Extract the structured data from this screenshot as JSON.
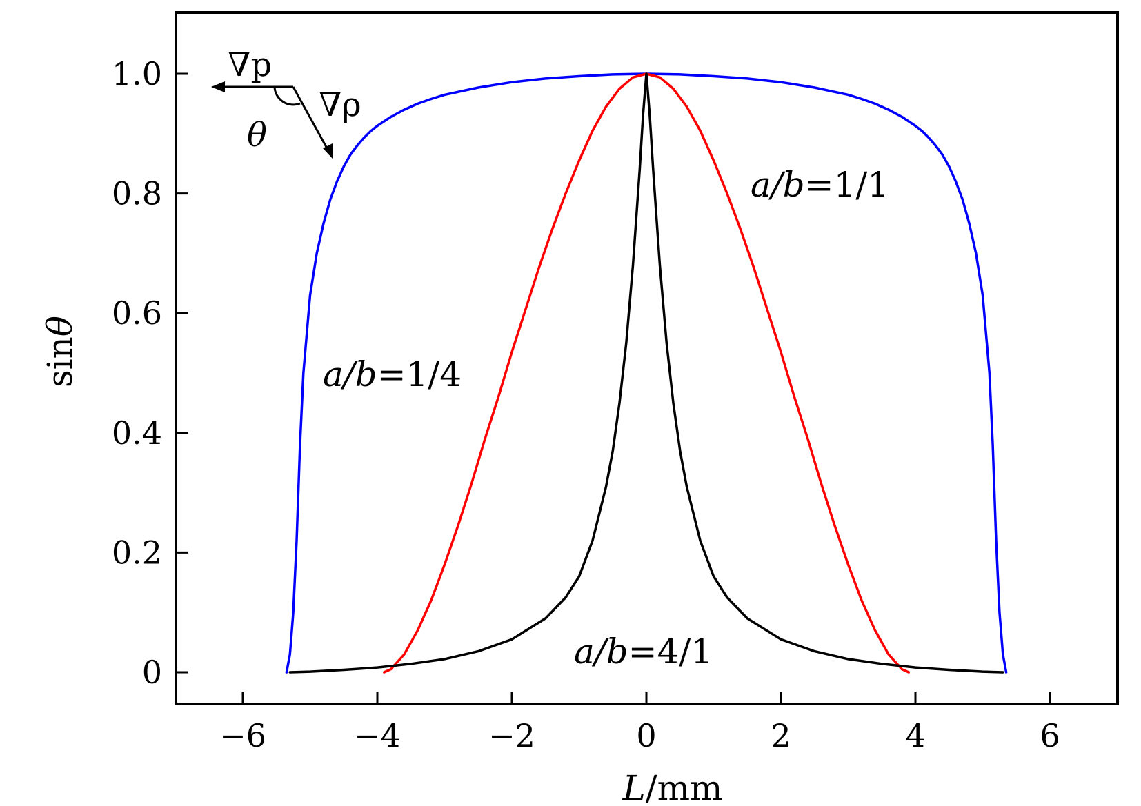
{
  "chart_data": {
    "type": "line",
    "xlabel": {
      "var": "L",
      "unit": "/mm"
    },
    "ylabel": {
      "func": "sin",
      "var": "θ"
    },
    "xlim": [
      -7,
      7
    ],
    "ylim": [
      -0.05,
      1.1
    ],
    "x_ticks": [
      -6,
      -4,
      -2,
      0,
      2,
      4,
      6
    ],
    "x_tick_labels": [
      "−6",
      "−4",
      "−2",
      "0",
      "2",
      "4",
      "6"
    ],
    "y_ticks": [
      0,
      0.2,
      0.4,
      0.6,
      0.8,
      1.0
    ],
    "y_tick_labels": [
      "0",
      "0.2",
      "0.4",
      "0.6",
      "0.8",
      "1.0"
    ],
    "grid": false,
    "series": [
      {
        "name": "a/b=1/4",
        "color": "#0000ff",
        "x": [
          -5.35,
          -5.3,
          -5.25,
          -5.2,
          -5.15,
          -5.1,
          -5.0,
          -4.9,
          -4.8,
          -4.7,
          -4.6,
          -4.5,
          -4.4,
          -4.3,
          -4.2,
          -4.1,
          -4.0,
          -3.8,
          -3.6,
          -3.4,
          -3.2,
          -3.0,
          -2.5,
          -2.0,
          -1.5,
          -1.0,
          -0.5,
          0,
          0.5,
          1.0,
          1.5,
          2.0,
          2.5,
          3.0,
          3.2,
          3.4,
          3.6,
          3.8,
          4.0,
          4.1,
          4.2,
          4.3,
          4.4,
          4.5,
          4.6,
          4.7,
          4.8,
          4.9,
          5.0,
          5.1,
          5.15,
          5.2,
          5.25,
          5.3,
          5.35
        ],
        "y": [
          0.0,
          0.03,
          0.1,
          0.22,
          0.38,
          0.5,
          0.63,
          0.7,
          0.75,
          0.79,
          0.82,
          0.845,
          0.865,
          0.88,
          0.893,
          0.904,
          0.913,
          0.928,
          0.94,
          0.95,
          0.958,
          0.965,
          0.977,
          0.986,
          0.992,
          0.996,
          0.999,
          1.0,
          0.999,
          0.996,
          0.992,
          0.986,
          0.977,
          0.965,
          0.958,
          0.95,
          0.94,
          0.928,
          0.913,
          0.904,
          0.893,
          0.88,
          0.865,
          0.845,
          0.82,
          0.79,
          0.75,
          0.7,
          0.63,
          0.5,
          0.38,
          0.22,
          0.1,
          0.03,
          0.0
        ]
      },
      {
        "name": "a/b=1/1",
        "color": "#ff0000",
        "x": [
          -3.9,
          -3.8,
          -3.6,
          -3.4,
          -3.2,
          -3.0,
          -2.8,
          -2.6,
          -2.4,
          -2.2,
          -2.0,
          -1.8,
          -1.6,
          -1.4,
          -1.2,
          -1.0,
          -0.8,
          -0.6,
          -0.4,
          -0.2,
          0,
          0.2,
          0.4,
          0.6,
          0.8,
          1.0,
          1.2,
          1.4,
          1.6,
          1.8,
          2.0,
          2.2,
          2.4,
          2.6,
          2.8,
          3.0,
          3.2,
          3.4,
          3.6,
          3.8,
          3.9
        ],
        "y": [
          0.0,
          0.005,
          0.03,
          0.07,
          0.12,
          0.18,
          0.245,
          0.315,
          0.39,
          0.46,
          0.535,
          0.605,
          0.675,
          0.74,
          0.8,
          0.855,
          0.905,
          0.945,
          0.975,
          0.994,
          1.0,
          0.994,
          0.975,
          0.945,
          0.905,
          0.855,
          0.8,
          0.74,
          0.675,
          0.605,
          0.535,
          0.46,
          0.39,
          0.315,
          0.245,
          0.18,
          0.12,
          0.07,
          0.03,
          0.005,
          0.0
        ]
      },
      {
        "name": "a/b=4/1",
        "color": "#000000",
        "x": [
          -5.3,
          -5.0,
          -4.5,
          -4.0,
          -3.5,
          -3.0,
          -2.5,
          -2.0,
          -1.5,
          -1.2,
          -1.0,
          -0.8,
          -0.6,
          -0.5,
          -0.4,
          -0.3,
          -0.2,
          -0.15,
          -0.1,
          -0.05,
          0,
          0.05,
          0.1,
          0.15,
          0.2,
          0.3,
          0.4,
          0.5,
          0.6,
          0.8,
          1.0,
          1.2,
          1.5,
          2.0,
          2.5,
          3.0,
          3.5,
          4.0,
          4.5,
          5.0,
          5.3
        ],
        "y": [
          0.0,
          0.001,
          0.004,
          0.008,
          0.014,
          0.022,
          0.035,
          0.055,
          0.09,
          0.125,
          0.16,
          0.22,
          0.31,
          0.37,
          0.45,
          0.55,
          0.68,
          0.76,
          0.84,
          0.93,
          1.0,
          0.93,
          0.84,
          0.76,
          0.68,
          0.55,
          0.45,
          0.37,
          0.31,
          0.22,
          0.16,
          0.125,
          0.09,
          0.055,
          0.035,
          0.022,
          0.014,
          0.008,
          0.004,
          0.001,
          0.0
        ]
      }
    ],
    "annotations": {
      "label_1_4": {
        "ab": "a/b",
        "eq": "=1/4"
      },
      "label_1_1": {
        "ab": "a/b",
        "eq": "=1/1"
      },
      "label_4_1": {
        "ab": "a/b",
        "eq": "=4/1"
      },
      "inset": {
        "grad_p": "∇p",
        "grad_rho": "∇ρ",
        "theta": "θ"
      }
    }
  }
}
